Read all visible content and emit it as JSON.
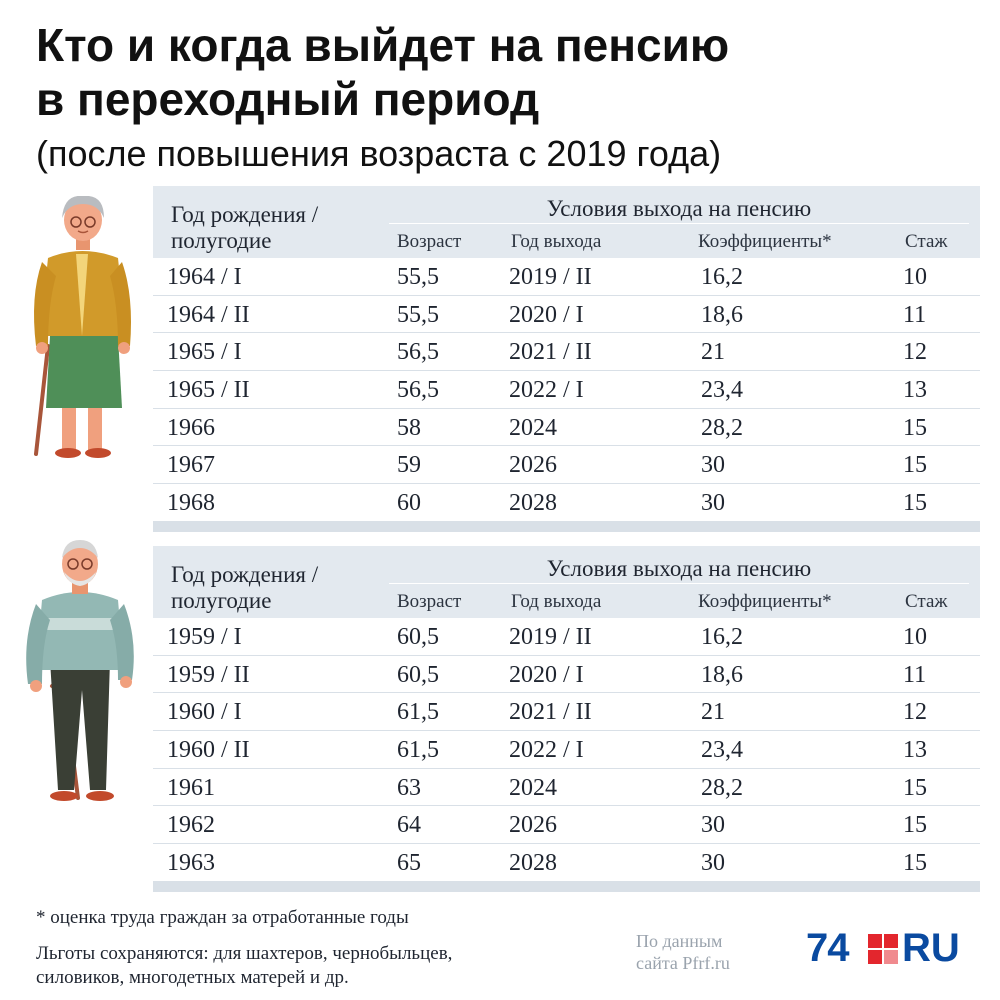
{
  "title_line1": "Кто и когда выйдет на пенсию",
  "title_line2": "в переходный период",
  "subtitle": "(после повышения возраста с 2019 года)",
  "header": {
    "birth_line1": "Год рождения /",
    "birth_line2": "полугодие",
    "conditions": "Условия выхода на пенсию",
    "age": "Возраст",
    "exit_year": "Год выхода",
    "coefficients": "Коэффициенты*",
    "seniority": "Стаж"
  },
  "tables": {
    "female": {
      "rows": [
        {
          "birth": "1964 / I",
          "age": "55,5",
          "exit": "2019 / II",
          "coef": "16,2",
          "stazh": "10"
        },
        {
          "birth": "1964 / II",
          "age": "55,5",
          "exit": "2020 / I",
          "coef": "18,6",
          "stazh": "11"
        },
        {
          "birth": "1965 / I",
          "age": "56,5",
          "exit": "2021 / II",
          "coef": "21",
          "stazh": "12"
        },
        {
          "birth": "1965 / II",
          "age": "56,5",
          "exit": "2022 / I",
          "coef": "23,4",
          "stazh": "13"
        },
        {
          "birth": "1966",
          "age": "58",
          "exit": "2024",
          "coef": "28,2",
          "stazh": "15"
        },
        {
          "birth": "1967",
          "age": "59",
          "exit": "2026",
          "coef": "30",
          "stazh": "15"
        },
        {
          "birth": "1968",
          "age": "60",
          "exit": "2028",
          "coef": "30",
          "stazh": "15"
        }
      ]
    },
    "male": {
      "rows": [
        {
          "birth": "1959 / I",
          "age": "60,5",
          "exit": "2019 / II",
          "coef": "16,2",
          "stazh": "10"
        },
        {
          "birth": "1959 / II",
          "age": "60,5",
          "exit": "2020 / I",
          "coef": "18,6",
          "stazh": "11"
        },
        {
          "birth": "1960 / I",
          "age": "61,5",
          "exit": "2021 / II",
          "coef": "21",
          "stazh": "12"
        },
        {
          "birth": "1960 / II",
          "age": "61,5",
          "exit": "2022 / I",
          "coef": "23,4",
          "stazh": "13"
        },
        {
          "birth": "1961",
          "age": "63",
          "exit": "2024",
          "coef": "28,2",
          "stazh": "15"
        },
        {
          "birth": "1962",
          "age": "64",
          "exit": "2026",
          "coef": "30",
          "stazh": "15"
        },
        {
          "birth": "1963",
          "age": "65",
          "exit": "2028",
          "coef": "30",
          "stazh": "15"
        }
      ]
    }
  },
  "footnote": "* оценка труда граждан за отработанные годы",
  "benefits_line1": "Льготы сохраняются: для шахтеров, чернобыльцев,",
  "benefits_line2": "силовиков, многодетных матерей и др.",
  "source_line1": "По данным",
  "source_line2": "сайта Pfrf.ru",
  "logo": {
    "number": "74",
    "suffix": "RU",
    "colors": {
      "blue": "#0a4aa0",
      "red": "#e3262d"
    }
  },
  "colors": {
    "header_bg": "#e3e9ef",
    "row_border": "#d9e0e7",
    "text": "#1f2530"
  }
}
